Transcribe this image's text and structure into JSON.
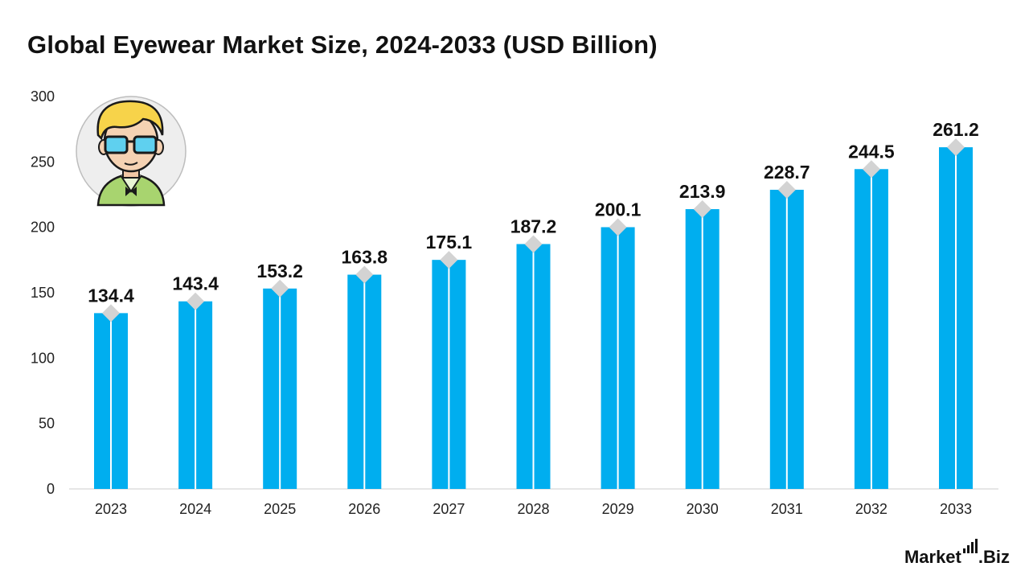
{
  "title": "Global Eyewear Market Size, 2024-2033 (USD Billion)",
  "brand": {
    "name": "Market",
    "suffix": ".Biz"
  },
  "illustration_icon": "nerd-person-with-glasses-icon",
  "colors": {
    "bar": "#00AEEF",
    "marker": "#D3D3D3",
    "axis_text": "#222222",
    "label_text": "#111111"
  },
  "chart_data": {
    "type": "bar",
    "categories": [
      "2023",
      "2024",
      "2025",
      "2026",
      "2027",
      "2028",
      "2029",
      "2030",
      "2031",
      "2032",
      "2033"
    ],
    "values": [
      134.4,
      143.4,
      153.2,
      163.8,
      175.1,
      187.2,
      200.1,
      213.9,
      228.7,
      244.5,
      261.2
    ],
    "data_labels": [
      "134.4",
      "143.4",
      "153.2",
      "163.8",
      "175.1",
      "187.2",
      "200.1",
      "213.9",
      "228.7",
      "244.5",
      "261.2"
    ],
    "title": "Global Eyewear Market Size, 2024-2033 (USD Billion)",
    "ylim": [
      0,
      300
    ],
    "yticks": [
      0,
      50,
      100,
      150,
      200,
      250,
      300
    ],
    "grid": false,
    "legend": "none"
  }
}
